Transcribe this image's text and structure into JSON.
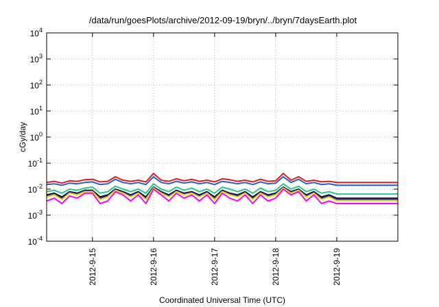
{
  "chart_data": {
    "type": "line",
    "title": "/data/run/goesPlots/archive/2012-09-19/bryn/../bryn/7daysEarth.plot",
    "xlabel": "Coordinated Universal Time (UTC)",
    "ylabel": "cGy/day",
    "yscale": "log",
    "ylim": [
      0.0001,
      10000
    ],
    "y_ticks": [
      {
        "base": "10",
        "exp": "-4",
        "value": 0.0001
      },
      {
        "base": "10",
        "exp": "-3",
        "value": 0.001
      },
      {
        "base": "10",
        "exp": "-2",
        "value": 0.01
      },
      {
        "base": "10",
        "exp": "-1",
        "value": 0.1
      },
      {
        "base": "10",
        "exp": "0",
        "value": 1
      },
      {
        "base": "10",
        "exp": "1",
        "value": 10
      },
      {
        "base": "10",
        "exp": "2",
        "value": 100
      },
      {
        "base": "10",
        "exp": "3",
        "value": 1000
      },
      {
        "base": "10",
        "exp": "4",
        "value": 10000
      }
    ],
    "xlim": [
      "2012-09-14T06:00",
      "2012-09-20T00:00"
    ],
    "x_ticks": [
      {
        "label": "2012-9-15",
        "value": "2012-09-15T00:00"
      },
      {
        "label": "2012-9-16",
        "value": "2012-09-16T00:00"
      },
      {
        "label": "2012-9-17",
        "value": "2012-09-17T00:00"
      },
      {
        "label": "2012-9-18",
        "value": "2012-09-18T00:00"
      },
      {
        "label": "2012-9-19",
        "value": "2012-09-19T00:00"
      }
    ],
    "grid": true,
    "x": [
      "2012-09-14T06:00",
      "2012-09-14T09:00",
      "2012-09-14T12:00",
      "2012-09-14T15:00",
      "2012-09-14T18:00",
      "2012-09-14T21:00",
      "2012-09-15T00:00",
      "2012-09-15T03:00",
      "2012-09-15T06:00",
      "2012-09-15T09:00",
      "2012-09-15T12:00",
      "2012-09-15T15:00",
      "2012-09-15T18:00",
      "2012-09-15T21:00",
      "2012-09-16T00:00",
      "2012-09-16T03:00",
      "2012-09-16T06:00",
      "2012-09-16T09:00",
      "2012-09-16T12:00",
      "2012-09-16T15:00",
      "2012-09-16T18:00",
      "2012-09-16T21:00",
      "2012-09-17T00:00",
      "2012-09-17T03:00",
      "2012-09-17T06:00",
      "2012-09-17T09:00",
      "2012-09-17T12:00",
      "2012-09-17T15:00",
      "2012-09-17T18:00",
      "2012-09-17T21:00",
      "2012-09-18T00:00",
      "2012-09-18T03:00",
      "2012-09-18T06:00",
      "2012-09-18T09:00",
      "2012-09-18T12:00",
      "2012-09-18T15:00",
      "2012-09-18T18:00",
      "2012-09-18T21:00",
      "2012-09-19T00:00",
      "2012-09-19T03:00",
      "2012-09-19T06:00",
      "2012-09-19T09:00",
      "2012-09-19T12:00",
      "2012-09-19T15:00",
      "2012-09-19T18:00",
      "2012-09-19T21:00",
      "2012-09-20T00:00"
    ],
    "series": [
      {
        "color": "#e31a1c",
        "values": [
          0.018,
          0.02,
          0.017,
          0.021,
          0.02,
          0.023,
          0.024,
          0.019,
          0.02,
          0.03,
          0.022,
          0.02,
          0.022,
          0.019,
          0.04,
          0.022,
          0.02,
          0.025,
          0.021,
          0.024,
          0.02,
          0.022,
          0.019,
          0.025,
          0.023,
          0.02,
          0.022,
          0.019,
          0.024,
          0.02,
          0.021,
          0.04,
          0.022,
          0.03,
          0.02,
          0.022,
          0.019,
          0.02,
          0.018,
          0.018,
          0.018,
          0.018,
          0.018,
          0.018,
          0.018,
          0.018,
          0.018
        ]
      },
      {
        "color": "#1f5fd6",
        "values": [
          0.015,
          0.016,
          0.014,
          0.017,
          0.016,
          0.018,
          0.019,
          0.015,
          0.016,
          0.024,
          0.018,
          0.016,
          0.018,
          0.015,
          0.03,
          0.018,
          0.016,
          0.02,
          0.017,
          0.019,
          0.016,
          0.018,
          0.015,
          0.02,
          0.018,
          0.016,
          0.018,
          0.015,
          0.019,
          0.016,
          0.017,
          0.03,
          0.018,
          0.024,
          0.016,
          0.018,
          0.015,
          0.016,
          0.014,
          0.014,
          0.014,
          0.014,
          0.014,
          0.014,
          0.014,
          0.014,
          0.014
        ]
      },
      {
        "color": "#1fc98a",
        "values": [
          0.008,
          0.009,
          0.007,
          0.01,
          0.009,
          0.011,
          0.012,
          0.007,
          0.008,
          0.013,
          0.01,
          0.008,
          0.01,
          0.007,
          0.016,
          0.01,
          0.008,
          0.012,
          0.009,
          0.011,
          0.008,
          0.01,
          0.007,
          0.012,
          0.01,
          0.008,
          0.01,
          0.007,
          0.011,
          0.008,
          0.009,
          0.016,
          0.01,
          0.013,
          0.008,
          0.01,
          0.007,
          0.008,
          0.0065,
          0.0065,
          0.0065,
          0.0065,
          0.0065,
          0.0065,
          0.0065,
          0.0065,
          0.0065
        ]
      },
      {
        "color": "#101010",
        "values": [
          0.006,
          0.007,
          0.005,
          0.008,
          0.007,
          0.009,
          0.009,
          0.005,
          0.006,
          0.01,
          0.008,
          0.006,
          0.008,
          0.005,
          0.012,
          0.008,
          0.006,
          0.009,
          0.007,
          0.008,
          0.006,
          0.008,
          0.005,
          0.009,
          0.007,
          0.006,
          0.008,
          0.005,
          0.008,
          0.006,
          0.007,
          0.012,
          0.008,
          0.01,
          0.006,
          0.008,
          0.005,
          0.006,
          0.0045,
          0.0045,
          0.0045,
          0.0045,
          0.0045,
          0.0045,
          0.0045,
          0.0045,
          0.0045
        ]
      },
      {
        "color": "#3a1fa8",
        "values": [
          0.0055,
          0.0065,
          0.0045,
          0.0075,
          0.0065,
          0.0085,
          0.0085,
          0.0045,
          0.0055,
          0.0095,
          0.0075,
          0.0055,
          0.0075,
          0.0045,
          0.0115,
          0.0075,
          0.0055,
          0.0085,
          0.0065,
          0.0075,
          0.0055,
          0.0075,
          0.0045,
          0.0085,
          0.0065,
          0.0055,
          0.0075,
          0.0045,
          0.0075,
          0.0055,
          0.0065,
          0.0115,
          0.0075,
          0.0095,
          0.0055,
          0.0075,
          0.0045,
          0.0055,
          0.0041,
          0.0041,
          0.0041,
          0.0041,
          0.0041,
          0.0041,
          0.0041,
          0.0041,
          0.0041
        ]
      },
      {
        "color": "#e0e000",
        "values": [
          0.005,
          0.006,
          0.004,
          0.007,
          0.006,
          0.008,
          0.008,
          0.004,
          0.005,
          0.009,
          0.007,
          0.005,
          0.007,
          0.004,
          0.011,
          0.007,
          0.005,
          0.008,
          0.006,
          0.007,
          0.005,
          0.007,
          0.004,
          0.008,
          0.006,
          0.005,
          0.007,
          0.004,
          0.007,
          0.005,
          0.006,
          0.011,
          0.007,
          0.009,
          0.005,
          0.007,
          0.004,
          0.005,
          0.0036,
          0.0036,
          0.0036,
          0.0036,
          0.0036,
          0.0036,
          0.0036,
          0.0036,
          0.0036
        ]
      },
      {
        "color": "#ff00ff",
        "values": [
          0.0035,
          0.0045,
          0.0028,
          0.0055,
          0.0045,
          0.007,
          0.007,
          0.0028,
          0.0035,
          0.008,
          0.006,
          0.0035,
          0.006,
          0.0028,
          0.01,
          0.006,
          0.0035,
          0.007,
          0.0045,
          0.006,
          0.0035,
          0.006,
          0.0028,
          0.007,
          0.0045,
          0.0035,
          0.006,
          0.0028,
          0.006,
          0.0035,
          0.0045,
          0.01,
          0.006,
          0.008,
          0.0035,
          0.006,
          0.0028,
          0.0035,
          0.0028,
          0.0028,
          0.0028,
          0.0028,
          0.0028,
          0.0028,
          0.0028,
          0.0028,
          0.0028
        ]
      }
    ]
  }
}
